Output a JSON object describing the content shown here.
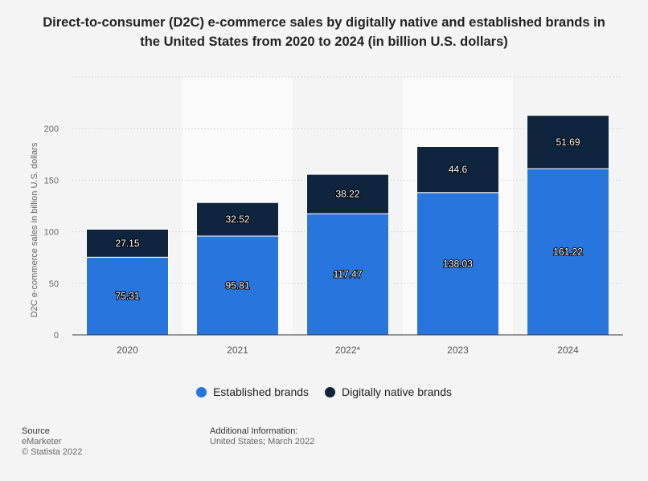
{
  "chart_data": {
    "type": "bar",
    "stacked": true,
    "title": "Direct-to-consumer (D2C) e-commerce sales by digitally native and established brands in the United States from 2020 to 2024 (in billion U.S. dollars)",
    "xlabel": "",
    "ylabel": "D2C e-commerce sales in billion U.S. dollars",
    "ylim": [
      0,
      250
    ],
    "yticks": [
      0,
      50,
      100,
      150,
      200
    ],
    "grid": true,
    "legend_position": "bottom",
    "categories": [
      "2020",
      "2021",
      "2022*",
      "2023",
      "2024"
    ],
    "series": [
      {
        "name": "Established brands",
        "color": "#2876dd",
        "values": [
          75.31,
          95.81,
          117.47,
          138.03,
          161.22
        ]
      },
      {
        "name": "Digitally native brands",
        "color": "#0f243d",
        "values": [
          27.15,
          32.52,
          38.22,
          44.6,
          51.69
        ]
      }
    ]
  },
  "footer": {
    "source_label": "Source",
    "source_lines": [
      "eMarketer",
      "© Statista 2022"
    ],
    "additional_label": "Additional Information:",
    "additional_text": "United States; March 2022"
  }
}
